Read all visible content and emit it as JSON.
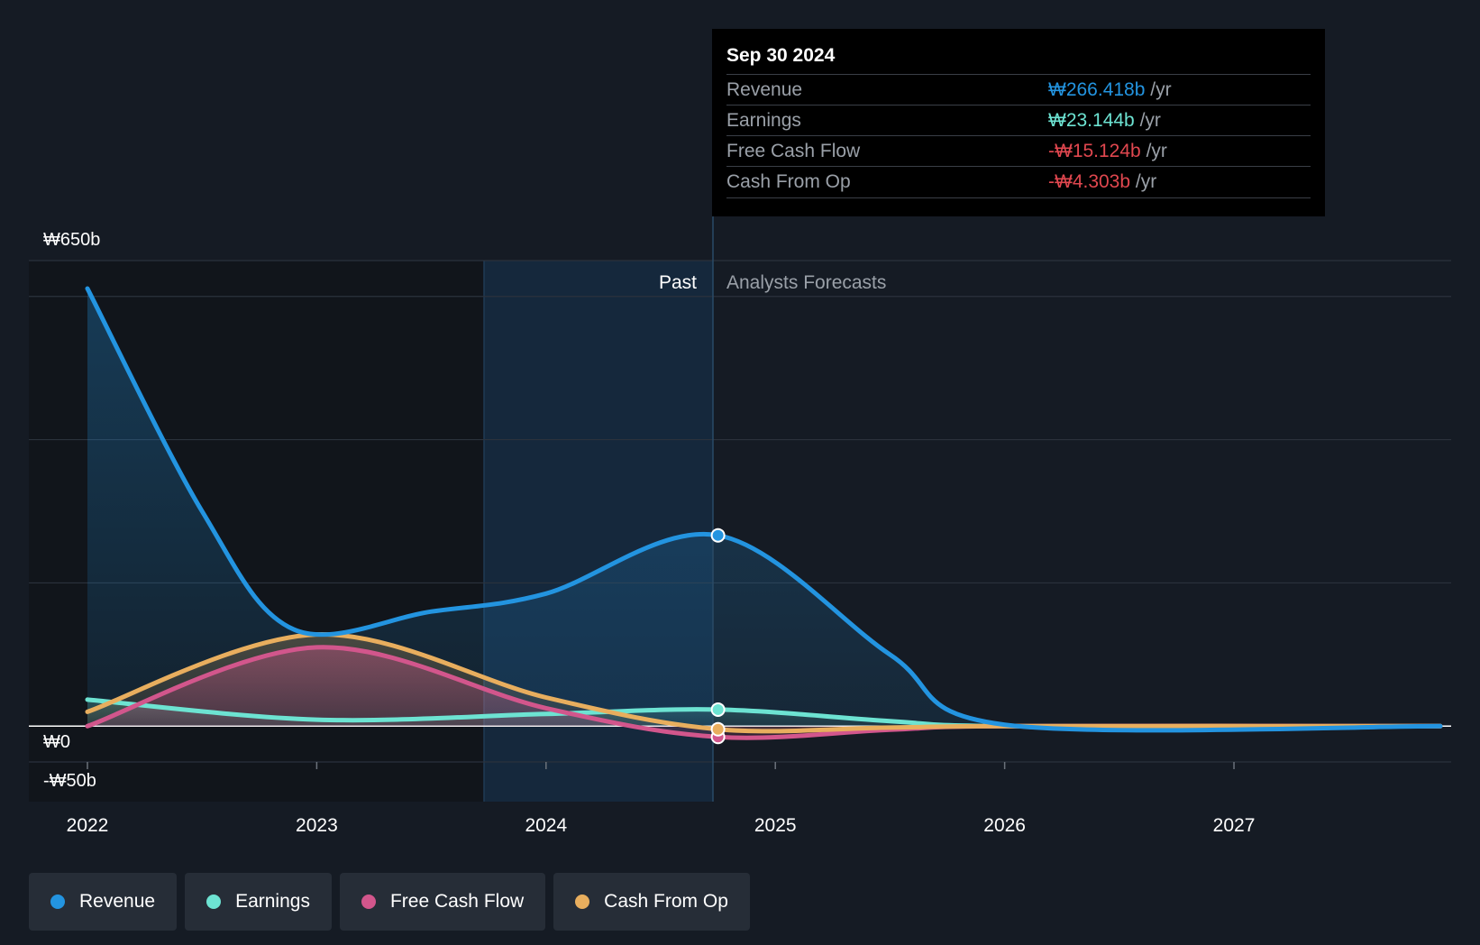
{
  "chart_data": {
    "type": "area",
    "currency": "₩",
    "y_axis_labels": [
      "₩650b",
      "₩0",
      "-₩50b"
    ],
    "ylim": [
      -50,
      650
    ],
    "x_ticks": [
      "2022",
      "2023",
      "2024",
      "2025",
      "2026",
      "2027"
    ],
    "x_range": [
      2022,
      2027.9
    ],
    "regions": {
      "past_label": "Past",
      "forecast_label": "Analysts Forecasts",
      "divider_x": 2024.75,
      "highlight_start_x": 2023.75
    },
    "series": [
      {
        "name": "Revenue",
        "color": "#2394e0",
        "points": [
          [
            2022.0,
            611
          ],
          [
            2022.5,
            300
          ],
          [
            2022.9,
            135
          ],
          [
            2023.5,
            160
          ],
          [
            2024.0,
            185
          ],
          [
            2024.75,
            266.4
          ],
          [
            2025.5,
            100
          ],
          [
            2026.0,
            2
          ],
          [
            2027.9,
            0
          ]
        ]
      },
      {
        "name": "Earnings",
        "color": "#6de3d2",
        "points": [
          [
            2022.0,
            37
          ],
          [
            2023.0,
            9
          ],
          [
            2024.0,
            17
          ],
          [
            2024.75,
            23.1
          ],
          [
            2025.5,
            7
          ],
          [
            2026.0,
            0
          ],
          [
            2027.9,
            0
          ]
        ]
      },
      {
        "name": "Free Cash Flow",
        "color": "#d2568c",
        "points": [
          [
            2022.0,
            0
          ],
          [
            2023.0,
            110
          ],
          [
            2024.0,
            25
          ],
          [
            2024.75,
            -15.1
          ],
          [
            2025.5,
            -5
          ],
          [
            2026.0,
            0
          ],
          [
            2027.9,
            0
          ]
        ]
      },
      {
        "name": "Cash From Op",
        "color": "#e8ae5e",
        "points": [
          [
            2022.0,
            20
          ],
          [
            2023.0,
            128
          ],
          [
            2024.0,
            40
          ],
          [
            2024.75,
            -4.3
          ],
          [
            2025.5,
            -2
          ],
          [
            2026.0,
            0
          ],
          [
            2027.9,
            0
          ]
        ]
      }
    ],
    "tooltip": {
      "date": "Sep 30 2024",
      "rows": [
        {
          "label": "Revenue",
          "value": "₩266.418b",
          "unit": "/yr",
          "color": "#2394e0"
        },
        {
          "label": "Earnings",
          "value": "₩23.144b",
          "unit": "/yr",
          "color": "#6de3d2"
        },
        {
          "label": "Free Cash Flow",
          "value": "-₩15.124b",
          "unit": "/yr",
          "color": "#e0474f"
        },
        {
          "label": "Cash From Op",
          "value": "-₩4.303b",
          "unit": "/yr",
          "color": "#e0474f"
        }
      ]
    }
  },
  "legend": [
    {
      "label": "Revenue",
      "color": "#2394e0"
    },
    {
      "label": "Earnings",
      "color": "#6de3d2"
    },
    {
      "label": "Free Cash Flow",
      "color": "#d2568c"
    },
    {
      "label": "Cash From Op",
      "color": "#e8ae5e"
    }
  ]
}
